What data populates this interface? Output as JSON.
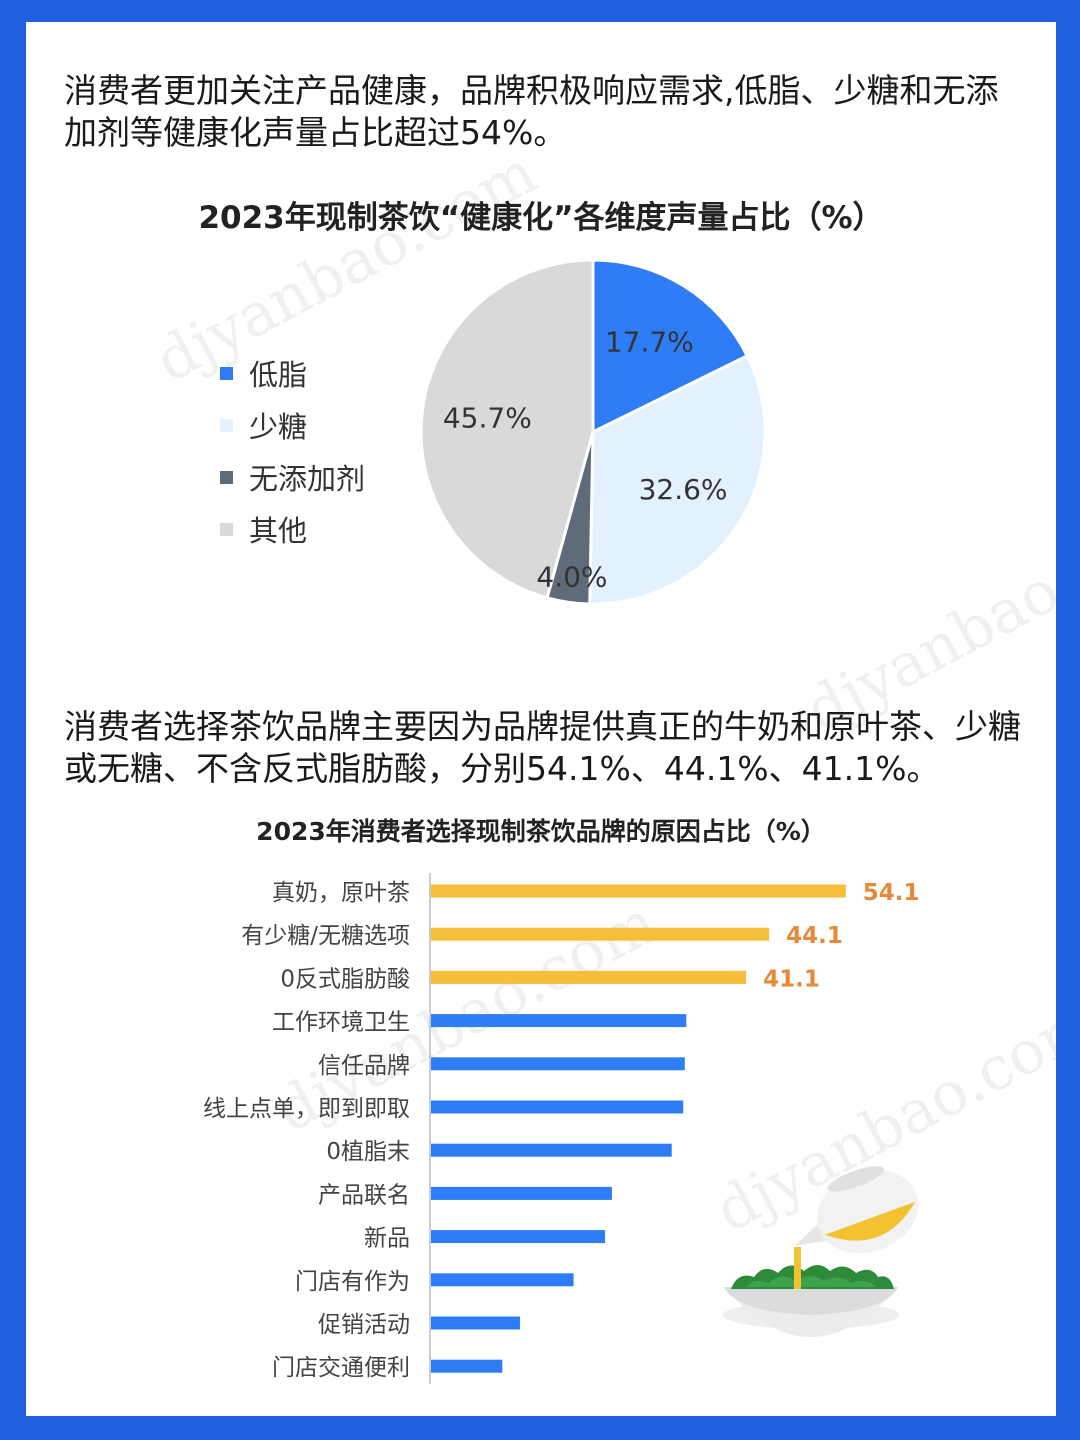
{
  "intro_text": "消费者更加关注产品健康，品牌积极响应需求,低脂、少糖和无添加剂等健康化声量占比超过54%。",
  "second_text": "消费者选择茶饮品牌主要因为品牌提供真正的牛奶和原叶茶、少糖或无糖、不含反式脂肪酸，分别54.1%、44.1%、41.1%。",
  "watermark": "djyanbao.com",
  "chart_data": [
    {
      "type": "pie",
      "title": "2023年现制茶饮“健康化”各维度声量占比（%）",
      "legend_position": "left",
      "slices": [
        {
          "name": "低脂",
          "value": 17.7,
          "label": "17.7%",
          "color": "#2f7df6"
        },
        {
          "name": "少糖",
          "value": 32.6,
          "label": "32.6%",
          "color": "#e3f0fd"
        },
        {
          "name": "无添加剂",
          "value": 4.0,
          "label": "4.0%",
          "color": "#5f6b78"
        },
        {
          "name": "其他",
          "value": 45.7,
          "label": "45.7%",
          "color": "#d9d9d9"
        }
      ]
    },
    {
      "type": "bar",
      "orientation": "horizontal",
      "title": "2023年消费者选择现制茶饮品牌的原因占比（%）",
      "xlim": [
        0,
        60
      ],
      "categories": [
        "真奶，原叶茶",
        "有少糖/无糖选项",
        "0反式脂肪酸",
        "工作环境卫生",
        "信任品牌",
        "线上点单，即到即取",
        "0植脂末",
        "产品联名",
        "新品",
        "门店有作为",
        "促销活动",
        "门店交通便利"
      ],
      "values": [
        54.1,
        44.1,
        41.1,
        33.3,
        33.1,
        32.9,
        31.4,
        23.6,
        22.7,
        18.6,
        11.6,
        9.3
      ],
      "value_labels": [
        "54.1",
        "44.1",
        "41.1",
        "",
        "",
        "",
        "",
        "",
        "",
        "",
        "",
        ""
      ],
      "colors": {
        "highlight": "#f5bd3a",
        "default": "#2f7df6",
        "label": "#e8893a"
      },
      "highlight_count": 3
    }
  ]
}
